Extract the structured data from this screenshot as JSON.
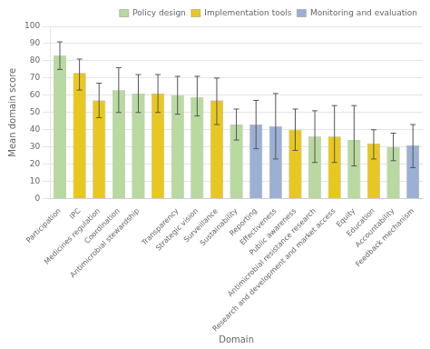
{
  "chart_data": {
    "type": "bar",
    "xlabel": "Domain",
    "ylabel": "Mean domain score",
    "categories": [
      "Participation",
      "IPC",
      "Medicines regulation",
      "Coordination",
      "Antimicrobial stewardship",
      null,
      "Transparency",
      "Strategic vision",
      "Surveillance",
      "Sustainability",
      "Reporting",
      "Effectiveness",
      "Public awareness",
      "Antimicrobial resistance research",
      "Research and development and market access",
      "Equity",
      "Education",
      "Accountability",
      "Feedback mechanism"
    ],
    "series": [
      {
        "name": "Policy design",
        "color": "#b8d9a0",
        "values": [
          83,
          null,
          null,
          63,
          61,
          null,
          60,
          59,
          null,
          43,
          null,
          null,
          null,
          36,
          null,
          34,
          null,
          30,
          null
        ],
        "err_lo": [
          8,
          null,
          null,
          13,
          11,
          null,
          11,
          11,
          null,
          9,
          null,
          null,
          null,
          15,
          null,
          15,
          null,
          8,
          null
        ],
        "err_hi": [
          8,
          null,
          null,
          13,
          11,
          null,
          11,
          12,
          null,
          9,
          null,
          null,
          null,
          15,
          null,
          20,
          null,
          8,
          null
        ]
      },
      {
        "name": "Implementation tools",
        "color": "#e8c820",
        "values": [
          null,
          73,
          57,
          null,
          null,
          61,
          null,
          null,
          57,
          null,
          null,
          null,
          40,
          null,
          36,
          null,
          32,
          null,
          null
        ],
        "err_lo": [
          null,
          10,
          10,
          null,
          null,
          11,
          null,
          null,
          14,
          null,
          null,
          null,
          12,
          null,
          15,
          null,
          9,
          null,
          null
        ],
        "err_hi": [
          null,
          8,
          10,
          null,
          null,
          11,
          null,
          null,
          13,
          null,
          null,
          null,
          12,
          null,
          18,
          null,
          8,
          null,
          null
        ]
      },
      {
        "name": "Monitoring and evaluation",
        "color": "#9bb0d4",
        "values": [
          null,
          null,
          null,
          null,
          null,
          null,
          null,
          null,
          null,
          null,
          43,
          42,
          null,
          null,
          null,
          null,
          null,
          null,
          31
        ],
        "err_lo": [
          null,
          null,
          null,
          null,
          null,
          null,
          null,
          null,
          null,
          null,
          14,
          19,
          null,
          null,
          null,
          null,
          null,
          null,
          13
        ],
        "err_hi": [
          null,
          null,
          null,
          null,
          null,
          null,
          null,
          null,
          null,
          null,
          14,
          19,
          null,
          null,
          null,
          null,
          null,
          null,
          12
        ]
      }
    ],
    "ylim": [
      0,
      100
    ],
    "yticks": [
      0,
      10,
      20,
      30,
      40,
      50,
      60,
      70,
      80,
      90,
      100
    ],
    "grid": true,
    "legend": "top-right"
  }
}
